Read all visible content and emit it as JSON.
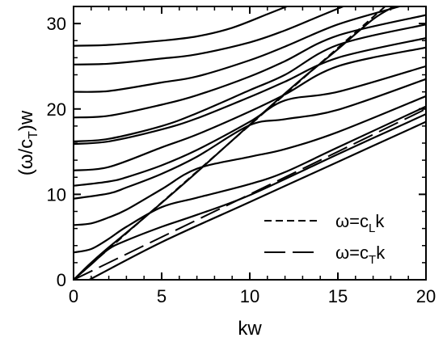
{
  "chart_data": {
    "type": "line",
    "xlabel": "kw",
    "ylabel_main": "(ω/c",
    "ylabel_sub": "T",
    "ylabel_tail": ")w",
    "xlim": [
      0,
      20
    ],
    "ylim": [
      0,
      32
    ],
    "x_ticks": [
      0,
      5,
      10,
      15,
      20
    ],
    "y_ticks": [
      0,
      10,
      20,
      30
    ],
    "grid": false,
    "legend_position": "bottom-right",
    "legend": [
      {
        "pre": "ω=c",
        "sub": "L",
        "post": "k",
        "style": "short-dash"
      },
      {
        "pre": "ω=c",
        "sub": "T",
        "post": "k",
        "style": "long-dash"
      }
    ],
    "reference_lines": [
      {
        "legend_index": 0,
        "style": "short-dash",
        "slope": 1.81
      },
      {
        "legend_index": 1,
        "style": "long-dash",
        "slope": 1.0
      }
    ],
    "branches": [
      {
        "x": [
          0.9,
          5,
          10,
          15,
          20
        ],
        "y": [
          0.0,
          4.4,
          9.1,
          13.8,
          18.5
        ]
      },
      {
        "x": [
          0,
          1,
          2,
          3,
          5,
          7,
          10,
          15,
          20
        ],
        "y": [
          0.0,
          1.8,
          3.6,
          4.6,
          6.2,
          7.6,
          9.9,
          14.7,
          19.4
        ]
      },
      {
        "x": [
          0,
          1,
          2,
          3,
          5,
          7,
          10,
          12,
          15,
          20
        ],
        "y": [
          3.2,
          3.6,
          4.8,
          6.2,
          8.5,
          9.6,
          11.2,
          12.6,
          15.5,
          20.3
        ]
      },
      {
        "x": [
          0,
          1,
          2,
          3,
          5,
          7,
          10,
          12,
          15,
          20
        ],
        "y": [
          6.4,
          6.6,
          7.3,
          8.2,
          10.6,
          13.0,
          14.4,
          15.3,
          17.3,
          21.5
        ]
      },
      {
        "x": [
          0,
          2,
          3,
          5,
          7,
          10,
          12,
          15,
          20
        ],
        "y": [
          9.5,
          10.1,
          10.8,
          12.4,
          14.4,
          18.1,
          18.8,
          19.9,
          23.5
        ]
      },
      {
        "x": [
          0,
          2,
          3,
          5,
          7,
          10,
          12,
          15,
          20
        ],
        "y": [
          11.0,
          11.5,
          12.0,
          13.4,
          15.2,
          18.5,
          21.0,
          22.0,
          25.0
        ]
      },
      {
        "x": [
          0,
          2,
          5,
          7,
          10,
          12,
          15,
          20
        ],
        "y": [
          12.8,
          13.2,
          15.5,
          17.0,
          19.7,
          21.7,
          25.0,
          27.2
        ]
      },
      {
        "x": [
          0,
          2,
          5,
          7,
          10,
          12,
          15,
          20
        ],
        "y": [
          15.9,
          16.2,
          17.6,
          18.9,
          21.4,
          23.2,
          26.0,
          28.3
        ]
      },
      {
        "x": [
          0,
          2,
          5,
          7,
          10,
          12,
          15,
          20
        ],
        "y": [
          16.2,
          16.5,
          18.0,
          19.5,
          22.2,
          24.0,
          27.5,
          29.9
        ]
      },
      {
        "x": [
          0,
          2,
          5,
          7,
          10,
          12,
          15,
          20
        ],
        "y": [
          19.0,
          19.2,
          20.5,
          21.6,
          23.8,
          25.6,
          28.6,
          31.0
        ]
      },
      {
        "x": [
          0,
          2,
          5,
          7,
          10,
          12,
          15,
          18.5
        ],
        "y": [
          22.0,
          22.1,
          23.1,
          23.8,
          25.7,
          27.3,
          29.9,
          32.0
        ]
      },
      {
        "x": [
          0,
          2,
          5,
          7,
          10,
          12,
          14,
          15.3
        ],
        "y": [
          25.2,
          25.3,
          25.9,
          26.4,
          27.8,
          29.2,
          30.9,
          32.0
        ]
      },
      {
        "x": [
          0,
          2,
          5,
          7,
          9,
          11,
          12.1
        ],
        "y": [
          27.4,
          27.5,
          28.0,
          28.5,
          29.5,
          31.1,
          32.0
        ]
      },
      {
        "x": [
          0,
          0.5,
          1,
          2,
          3,
          5,
          7,
          9,
          11,
          13,
          15,
          17,
          18.2
        ],
        "y": [
          0.0,
          1.0,
          2.0,
          3.8,
          5.5,
          9.0,
          12.6,
          16.3,
          20.0,
          23.6,
          27.0,
          30.5,
          32.0
        ]
      }
    ]
  }
}
